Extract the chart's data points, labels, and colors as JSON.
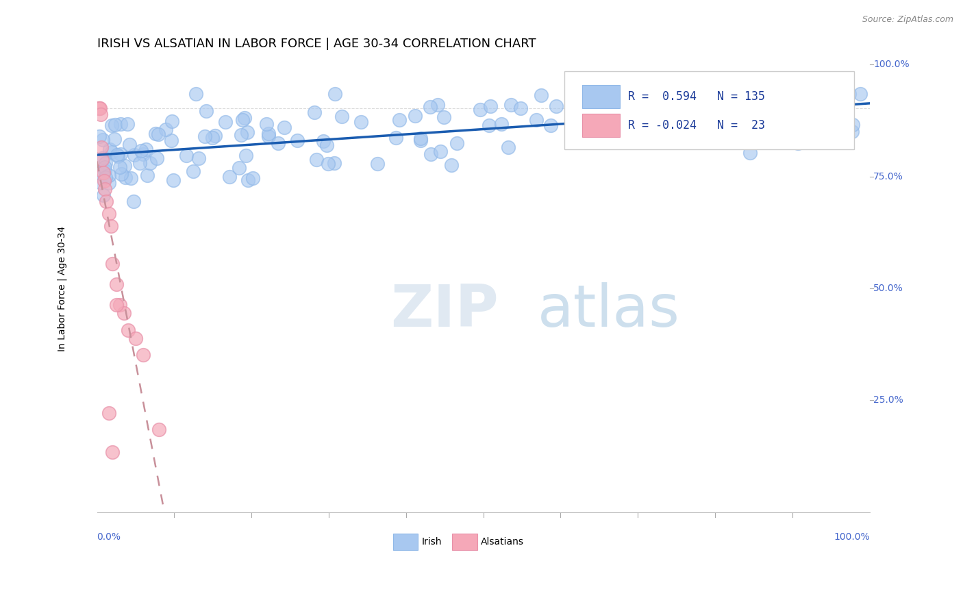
{
  "title": "IRISH VS ALSATIAN IN LABOR FORCE | AGE 30-34 CORRELATION CHART",
  "source": "Source: ZipAtlas.com",
  "ylabel": "In Labor Force | Age 30-34",
  "legend_irish_R": "0.594",
  "legend_irish_N": "135",
  "legend_alsatian_R": "-0.024",
  "legend_alsatian_N": "23",
  "irish_color": "#a8c8f0",
  "alsatian_color": "#f5a8b8",
  "irish_line_color": "#1a5cb0",
  "alsatian_line_color": "#c8909a",
  "watermark_zip": "ZIP",
  "watermark_atlas": "atlas",
  "xmin": 0.0,
  "xmax": 1.0,
  "ymin": 0.0,
  "ymax": 1.08,
  "title_fontsize": 13,
  "axis_label_fontsize": 10,
  "tick_fontsize": 10,
  "irish_x": [
    0.001,
    0.002,
    0.003,
    0.003,
    0.004,
    0.005,
    0.005,
    0.006,
    0.007,
    0.008,
    0.009,
    0.01,
    0.011,
    0.012,
    0.013,
    0.014,
    0.015,
    0.016,
    0.017,
    0.018,
    0.019,
    0.02,
    0.022,
    0.024,
    0.026,
    0.028,
    0.03,
    0.033,
    0.036,
    0.04,
    0.044,
    0.048,
    0.052,
    0.056,
    0.06,
    0.065,
    0.07,
    0.075,
    0.08,
    0.085,
    0.09,
    0.095,
    0.1,
    0.105,
    0.11,
    0.115,
    0.12,
    0.13,
    0.14,
    0.15,
    0.16,
    0.17,
    0.18,
    0.19,
    0.2,
    0.21,
    0.22,
    0.23,
    0.24,
    0.25,
    0.26,
    0.27,
    0.28,
    0.29,
    0.3,
    0.31,
    0.32,
    0.33,
    0.34,
    0.35,
    0.36,
    0.37,
    0.38,
    0.39,
    0.4,
    0.41,
    0.42,
    0.43,
    0.44,
    0.45,
    0.46,
    0.47,
    0.48,
    0.49,
    0.5,
    0.51,
    0.52,
    0.54,
    0.56,
    0.58,
    0.6,
    0.62,
    0.64,
    0.66,
    0.68,
    0.7,
    0.72,
    0.74,
    0.76,
    0.78,
    0.8,
    0.82,
    0.84,
    0.86,
    0.88,
    0.9,
    0.92,
    0.94,
    0.96,
    0.97,
    0.975,
    0.98,
    0.985,
    0.988,
    0.99,
    0.992,
    0.994,
    0.996,
    0.997,
    0.998,
    0.999,
    0.999,
    0.999,
    0.999,
    0.999,
    0.999,
    0.999,
    0.999,
    0.999,
    0.999,
    0.999,
    0.999,
    0.999,
    0.999,
    0.999
  ],
  "irish_y": [
    0.87,
    0.875,
    0.872,
    0.878,
    0.865,
    0.86,
    0.868,
    0.855,
    0.862,
    0.858,
    0.87,
    0.875,
    0.868,
    0.872,
    0.865,
    0.878,
    0.86,
    0.855,
    0.87,
    0.875,
    0.865,
    0.868,
    0.872,
    0.878,
    0.86,
    0.87,
    0.875,
    0.868,
    0.862,
    0.87,
    0.875,
    0.872,
    0.865,
    0.878,
    0.87,
    0.862,
    0.875,
    0.868,
    0.87,
    0.878,
    0.865,
    0.86,
    0.872,
    0.875,
    0.868,
    0.87,
    0.878,
    0.862,
    0.875,
    0.87,
    0.878,
    0.872,
    0.865,
    0.88,
    0.875,
    0.882,
    0.878,
    0.87,
    0.885,
    0.875,
    0.88,
    0.872,
    0.878,
    0.885,
    0.875,
    0.88,
    0.878,
    0.872,
    0.885,
    0.88,
    0.878,
    0.875,
    0.882,
    0.888,
    0.88,
    0.875,
    0.885,
    0.88,
    0.878,
    0.882,
    0.888,
    0.875,
    0.88,
    0.885,
    0.878,
    0.882,
    0.888,
    0.89,
    0.885,
    0.878,
    0.882,
    0.88,
    0.888,
    0.875,
    0.87,
    0.86,
    0.85,
    0.845,
    0.855,
    0.865,
    0.87,
    0.878,
    0.882,
    0.888,
    0.892,
    0.895,
    0.9,
    0.905,
    0.91,
    0.915,
    0.95,
    0.96,
    0.97,
    0.975,
    0.98,
    0.985,
    0.988,
    0.99,
    0.992,
    0.995,
    0.997,
    0.998,
    0.999,
    0.999,
    0.999,
    0.999,
    0.999,
    0.999,
    0.999,
    0.999,
    0.999,
    0.999,
    0.999,
    0.999,
    0.999
  ],
  "alsatian_x": [
    0.002,
    0.003,
    0.004,
    0.005,
    0.006,
    0.007,
    0.008,
    0.009,
    0.01,
    0.012,
    0.015,
    0.018,
    0.02,
    0.025,
    0.03,
    0.035,
    0.04,
    0.05,
    0.06,
    0.08,
    0.015,
    0.02,
    0.025
  ],
  "alsatian_y": [
    0.975,
    0.975,
    0.975,
    0.96,
    0.88,
    0.85,
    0.82,
    0.8,
    0.78,
    0.75,
    0.72,
    0.69,
    0.6,
    0.55,
    0.5,
    0.48,
    0.44,
    0.42,
    0.38,
    0.2,
    0.24,
    0.145,
    0.5
  ]
}
